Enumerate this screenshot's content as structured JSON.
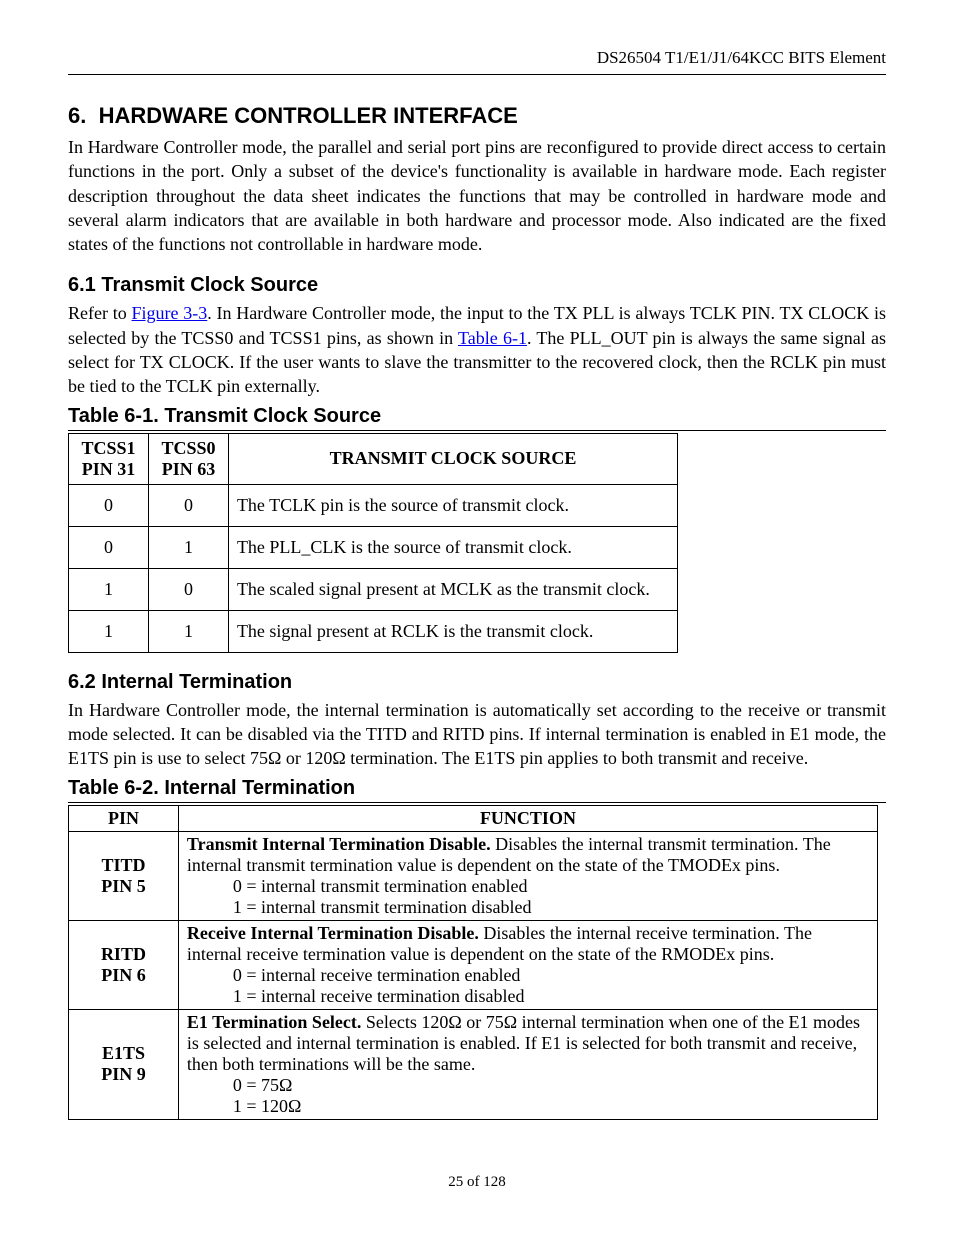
{
  "header": {
    "text": "DS26504 T1/E1/J1/64KCC BITS Element"
  },
  "section": {
    "number": "6.",
    "title": "HARDWARE CONTROLLER INTERFACE",
    "intro": "In Hardware Controller mode, the parallel and serial port pins are reconfigured to provide direct access to certain functions in the port.  Only a subset of the device's functionality is available in hardware mode. Each register description throughout the data sheet indicates the functions that may be controlled in hardware mode and several alarm indicators that are available in both hardware and processor mode. Also indicated are the fixed states of the functions not controllable in hardware mode."
  },
  "sub1": {
    "heading": "6.1 Transmit Clock Source",
    "para_pre": "Refer to ",
    "link1": "Figure 3-3",
    "para_mid": ". In Hardware Controller mode, the input to the TX PLL is always TCLK PIN. TX CLOCK is selected by the TCSS0 and TCSS1 pins, as shown in ",
    "link2": "Table 6-1",
    "para_post": ".  The PLL_OUT pin is always the same signal as select for TX CLOCK.  If the user wants to slave the transmitter to the recovered clock, then the RCLK pin must be tied to the TCLK pin externally.",
    "table_title": "Table 6-1. Transmit Clock Source",
    "table": {
      "headers": {
        "c1a": "TCSS1",
        "c1b": "PIN 31",
        "c2a": "TCSS0",
        "c2b": "PIN 63",
        "c3": "TRANSMIT CLOCK SOURCE"
      },
      "rows": [
        {
          "a": "0",
          "b": "0",
          "txt": "The TCLK pin is the source of transmit clock."
        },
        {
          "a": "0",
          "b": "1",
          "txt": "The PLL_CLK is the source of transmit clock."
        },
        {
          "a": "1",
          "b": "0",
          "txt": "The scaled signal present at MCLK as the transmit clock."
        },
        {
          "a": "1",
          "b": "1",
          "txt": "The signal present at RCLK is the transmit clock."
        }
      ]
    }
  },
  "sub2": {
    "heading": "6.2 Internal Termination",
    "para": "In Hardware Controller mode, the internal termination is automatically set according to the receive or transmit mode selected. It can be disabled via the TITD and RITD pins.  If internal termination is enabled in E1 mode, the E1TS pin is use to select 75Ω or 120Ω termination. The E1TS pin applies to both transmit and receive.",
    "table_title": "Table 6-2. Internal Termination",
    "table": {
      "headers": {
        "c1": "PIN",
        "c2": "FUNCTION"
      },
      "rows": [
        {
          "pin1": "TITD",
          "pin2": "PIN 5",
          "bold": "Transmit Internal Termination Disable.",
          "rest": " Disables the internal transmit termination. The internal transmit termination value is dependent on the state of the TMODEx pins.",
          "opt0": "0 = internal transmit termination enabled",
          "opt1": "1 = internal transmit termination disabled"
        },
        {
          "pin1": "RITD",
          "pin2": "PIN 6",
          "bold": "Receive Internal Termination Disable.",
          "rest": " Disables the internal receive termination. The internal receive termination value is dependent on the state of the RMODEx pins.",
          "opt0": "0 = internal receive termination enabled",
          "opt1": "1 = internal receive termination disabled"
        },
        {
          "pin1": "E1TS",
          "pin2": "PIN 9",
          "bold": "E1 Termination Select.",
          "rest": " Selects 120Ω or 75Ω internal termination when one of the E1 modes is selected and internal termination is enabled. If E1 is selected for both transmit and receive, then both terminations will be the same.",
          "opt0": "0 = 75Ω",
          "opt1": "1 = 120Ω"
        }
      ]
    }
  },
  "footer": {
    "text": "25 of 128"
  }
}
